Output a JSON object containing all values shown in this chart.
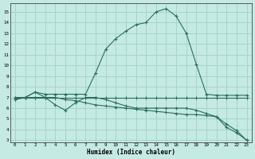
{
  "bg_color": "#c5eae3",
  "grid_color": "#a2d5cb",
  "line_color": "#2a6e60",
  "xlabel": "Humidex (Indice chaleur)",
  "xlim": [
    -0.5,
    23.5
  ],
  "ylim": [
    2.8,
    15.8
  ],
  "yticks": [
    3,
    4,
    5,
    6,
    7,
    8,
    9,
    10,
    11,
    12,
    13,
    14,
    15
  ],
  "xticks": [
    0,
    1,
    2,
    3,
    4,
    5,
    6,
    7,
    8,
    9,
    10,
    11,
    12,
    13,
    14,
    15,
    16,
    17,
    18,
    19,
    20,
    21,
    22,
    23
  ],
  "line_flat_x": [
    0,
    1,
    2,
    3,
    4,
    5,
    6,
    7,
    8,
    9,
    10,
    11,
    12,
    13,
    14,
    15,
    16,
    17,
    18,
    19,
    20,
    21,
    22,
    23
  ],
  "line_flat_y": [
    7.0,
    7.0,
    7.0,
    7.0,
    7.0,
    7.0,
    7.0,
    7.0,
    7.0,
    7.0,
    7.0,
    7.0,
    7.0,
    7.0,
    7.0,
    7.0,
    7.0,
    7.0,
    7.0,
    7.0,
    7.0,
    7.0,
    7.0,
    7.0
  ],
  "line_peak_x": [
    0,
    1,
    2,
    3,
    4,
    5,
    6,
    7,
    8,
    9,
    10,
    11,
    12,
    13,
    14,
    15,
    16,
    17,
    18,
    19,
    20,
    21,
    22,
    23
  ],
  "line_peak_y": [
    6.8,
    7.0,
    7.5,
    7.3,
    7.3,
    7.3,
    7.3,
    7.3,
    9.3,
    11.5,
    12.5,
    13.2,
    13.8,
    14.0,
    15.0,
    15.3,
    14.6,
    13.0,
    10.1,
    7.3,
    7.2,
    7.2,
    7.2,
    7.2
  ],
  "line_decline_x": [
    0,
    1,
    2,
    3,
    4,
    5,
    6,
    7,
    8,
    9,
    10,
    11,
    12,
    13,
    14,
    15,
    16,
    17,
    18,
    19,
    20,
    21,
    22,
    23
  ],
  "line_decline_y": [
    7.0,
    7.0,
    7.0,
    7.0,
    7.0,
    6.8,
    6.7,
    6.5,
    6.3,
    6.2,
    6.1,
    6.0,
    5.9,
    5.8,
    5.7,
    5.6,
    5.5,
    5.4,
    5.4,
    5.3,
    5.2,
    4.2,
    3.7,
    3.0
  ],
  "line_zigzag_x": [
    0,
    1,
    2,
    3,
    4,
    5,
    6,
    7,
    8,
    9,
    10,
    11,
    12,
    13,
    14,
    15,
    16,
    17,
    18,
    19,
    20,
    21,
    22,
    23
  ],
  "line_zigzag_y": [
    6.8,
    7.0,
    7.5,
    7.0,
    6.3,
    5.8,
    6.5,
    7.0,
    7.0,
    6.8,
    6.5,
    6.2,
    6.0,
    6.0,
    6.0,
    6.0,
    6.0,
    6.0,
    5.8,
    5.5,
    5.2,
    4.5,
    3.9,
    3.0
  ]
}
